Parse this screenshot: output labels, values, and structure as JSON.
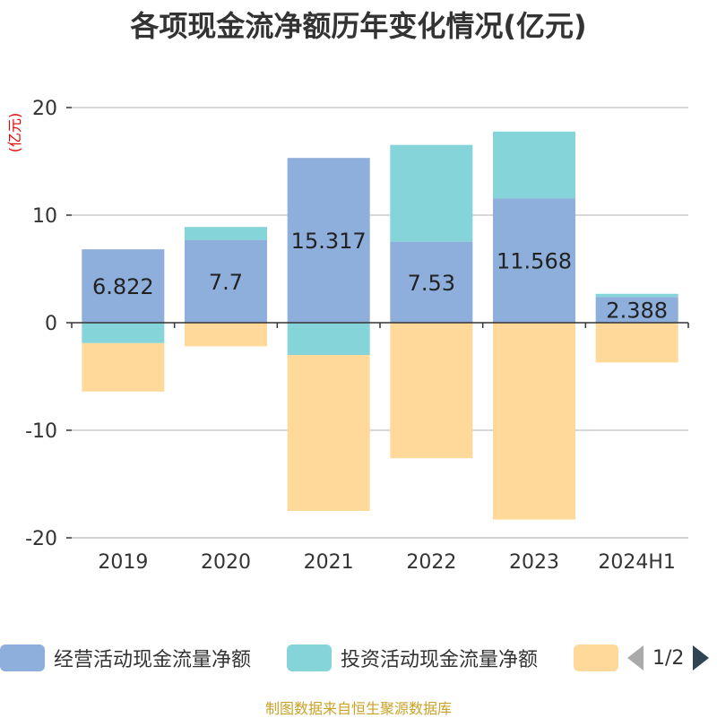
{
  "chart_data": {
    "type": "bar",
    "stacked": true,
    "title": "各项现金流净额历年变化情况(亿元)",
    "ylabel": "(亿元)",
    "ylim": [
      -20,
      20
    ],
    "yticks": [
      20,
      10,
      0,
      -10,
      -20
    ],
    "categories": [
      "2019",
      "2020",
      "2021",
      "2022",
      "2023",
      "2024H1"
    ],
    "series": [
      {
        "name": "经营活动现金流量净额",
        "color": "#8eaedb",
        "values": [
          6.822,
          7.7,
          15.317,
          7.53,
          11.568,
          2.388
        ],
        "labels": [
          "6.822",
          "7.7",
          "15.317",
          "7.53",
          "11.568",
          "2.388"
        ]
      },
      {
        "name": "投资活动现金流量净额",
        "color": "#85d4d9",
        "values": [
          -1.9,
          1.2,
          -3.0,
          9.0,
          6.2,
          0.3
        ]
      },
      {
        "name": "",
        "color": "#ffd999",
        "values": [
          -4.5,
          -2.2,
          -14.5,
          -12.6,
          -18.3,
          -3.7
        ]
      }
    ],
    "grid": true
  },
  "legend": {
    "page": "1/2"
  },
  "footer": "制图数据来自恒生聚源数据库"
}
